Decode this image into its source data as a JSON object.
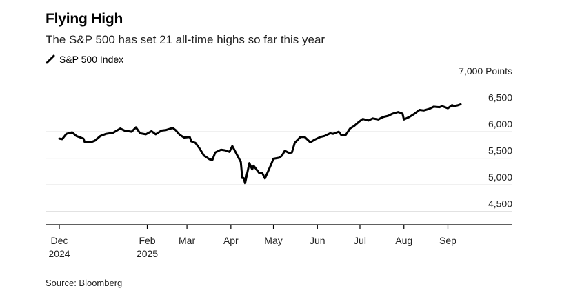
{
  "header": {
    "title": "Flying High",
    "subtitle": "The S&P 500 has set 21 all-time highs so far this year",
    "legend_label": "S&P 500 Index"
  },
  "footer": {
    "source": "Source: Bloomberg"
  },
  "colors": {
    "line": "#000000",
    "grid": "#d9d9d9",
    "axis": "#000000",
    "text": "#222222"
  },
  "chart_data": {
    "type": "line",
    "title": "Flying High",
    "subtitle": "The S&P 500 has set 21 all-time highs so far this year",
    "xlabel": "",
    "ylabel": "",
    "y_unit_label": "Points",
    "ylim": [
      4250,
      7000
    ],
    "y_ticks": [
      4500,
      5000,
      5500,
      6000,
      6500,
      7000
    ],
    "y_tick_labels": [
      "4,500",
      "5,000",
      "5,500",
      "6,000",
      "6,500",
      "7,000 Points"
    ],
    "grid": true,
    "legend_position": "top-left",
    "x_ticks": [
      {
        "date": "2024-12-01",
        "label": "Dec",
        "sublabel": "2024"
      },
      {
        "date": "2025-02-01",
        "label": "Feb",
        "sublabel": "2025"
      },
      {
        "date": "2025-03-01",
        "label": "Mar",
        "sublabel": ""
      },
      {
        "date": "2025-04-01",
        "label": "Apr",
        "sublabel": ""
      },
      {
        "date": "2025-05-01",
        "label": "May",
        "sublabel": ""
      },
      {
        "date": "2025-06-01",
        "label": "Jun",
        "sublabel": ""
      },
      {
        "date": "2025-07-01",
        "label": "Jul",
        "sublabel": ""
      },
      {
        "date": "2025-08-01",
        "label": "Aug",
        "sublabel": ""
      },
      {
        "date": "2025-09-01",
        "label": "Sep",
        "sublabel": ""
      }
    ],
    "series": [
      {
        "name": "S&P 500 Index",
        "points": [
          {
            "x": "2024-12-01",
            "y": 5870
          },
          {
            "x": "2024-12-03",
            "y": 5860
          },
          {
            "x": "2024-12-06",
            "y": 5960
          },
          {
            "x": "2024-12-10",
            "y": 5990
          },
          {
            "x": "2024-12-13",
            "y": 5920
          },
          {
            "x": "2024-12-18",
            "y": 5870
          },
          {
            "x": "2024-12-19",
            "y": 5800
          },
          {
            "x": "2024-12-24",
            "y": 5810
          },
          {
            "x": "2024-12-26",
            "y": 5830
          },
          {
            "x": "2024-12-30",
            "y": 5920
          },
          {
            "x": "2025-01-03",
            "y": 5960
          },
          {
            "x": "2025-01-08",
            "y": 5980
          },
          {
            "x": "2025-01-13",
            "y": 6060
          },
          {
            "x": "2025-01-16",
            "y": 6020
          },
          {
            "x": "2025-01-21",
            "y": 6000
          },
          {
            "x": "2025-01-24",
            "y": 6080
          },
          {
            "x": "2025-01-27",
            "y": 5970
          },
          {
            "x": "2025-01-31",
            "y": 5950
          },
          {
            "x": "2025-02-04",
            "y": 6010
          },
          {
            "x": "2025-02-07",
            "y": 5950
          },
          {
            "x": "2025-02-11",
            "y": 6020
          },
          {
            "x": "2025-02-14",
            "y": 6030
          },
          {
            "x": "2025-02-19",
            "y": 6070
          },
          {
            "x": "2025-02-21",
            "y": 6030
          },
          {
            "x": "2025-02-24",
            "y": 5940
          },
          {
            "x": "2025-02-27",
            "y": 5890
          },
          {
            "x": "2025-03-03",
            "y": 5900
          },
          {
            "x": "2025-03-04",
            "y": 5820
          },
          {
            "x": "2025-03-07",
            "y": 5790
          },
          {
            "x": "2025-03-10",
            "y": 5680
          },
          {
            "x": "2025-03-13",
            "y": 5550
          },
          {
            "x": "2025-03-17",
            "y": 5480
          },
          {
            "x": "2025-03-19",
            "y": 5470
          },
          {
            "x": "2025-03-21",
            "y": 5610
          },
          {
            "x": "2025-03-25",
            "y": 5660
          },
          {
            "x": "2025-03-28",
            "y": 5650
          },
          {
            "x": "2025-03-31",
            "y": 5620
          },
          {
            "x": "2025-04-02",
            "y": 5730
          },
          {
            "x": "2025-04-04",
            "y": 5630
          },
          {
            "x": "2025-04-08",
            "y": 5430
          },
          {
            "x": "2025-04-09",
            "y": 5130
          },
          {
            "x": "2025-04-10",
            "y": 5130
          },
          {
            "x": "2025-04-11",
            "y": 5030
          },
          {
            "x": "2025-04-14",
            "y": 5410
          },
          {
            "x": "2025-04-16",
            "y": 5290
          },
          {
            "x": "2025-04-17",
            "y": 5360
          },
          {
            "x": "2025-04-21",
            "y": 5220
          },
          {
            "x": "2025-04-23",
            "y": 5230
          },
          {
            "x": "2025-04-25",
            "y": 5120
          },
          {
            "x": "2025-04-29",
            "y": 5360
          },
          {
            "x": "2025-05-01",
            "y": 5490
          },
          {
            "x": "2025-05-05",
            "y": 5510
          },
          {
            "x": "2025-05-07",
            "y": 5550
          },
          {
            "x": "2025-05-09",
            "y": 5640
          },
          {
            "x": "2025-05-12",
            "y": 5600
          },
          {
            "x": "2025-05-14",
            "y": 5610
          },
          {
            "x": "2025-05-16",
            "y": 5790
          },
          {
            "x": "2025-05-20",
            "y": 5900
          },
          {
            "x": "2025-05-23",
            "y": 5900
          },
          {
            "x": "2025-05-27",
            "y": 5800
          },
          {
            "x": "2025-05-30",
            "y": 5850
          },
          {
            "x": "2025-06-03",
            "y": 5900
          },
          {
            "x": "2025-06-06",
            "y": 5920
          },
          {
            "x": "2025-06-10",
            "y": 5970
          },
          {
            "x": "2025-06-12",
            "y": 5960
          },
          {
            "x": "2025-06-16",
            "y": 6000
          },
          {
            "x": "2025-06-18",
            "y": 5930
          },
          {
            "x": "2025-06-21",
            "y": 5940
          },
          {
            "x": "2025-06-24",
            "y": 6060
          },
          {
            "x": "2025-06-27",
            "y": 6110
          },
          {
            "x": "2025-06-30",
            "y": 6180
          },
          {
            "x": "2025-07-03",
            "y": 6240
          },
          {
            "x": "2025-07-07",
            "y": 6210
          },
          {
            "x": "2025-07-10",
            "y": 6250
          },
          {
            "x": "2025-07-14",
            "y": 6230
          },
          {
            "x": "2025-07-16",
            "y": 6260
          },
          {
            "x": "2025-07-18",
            "y": 6280
          },
          {
            "x": "2025-07-21",
            "y": 6300
          },
          {
            "x": "2025-07-24",
            "y": 6340
          },
          {
            "x": "2025-07-28",
            "y": 6370
          },
          {
            "x": "2025-07-31",
            "y": 6340
          },
          {
            "x": "2025-08-01",
            "y": 6230
          },
          {
            "x": "2025-08-05",
            "y": 6280
          },
          {
            "x": "2025-08-08",
            "y": 6330
          },
          {
            "x": "2025-08-12",
            "y": 6410
          },
          {
            "x": "2025-08-15",
            "y": 6400
          },
          {
            "x": "2025-08-19",
            "y": 6430
          },
          {
            "x": "2025-08-22",
            "y": 6470
          },
          {
            "x": "2025-08-26",
            "y": 6460
          },
          {
            "x": "2025-08-28",
            "y": 6480
          },
          {
            "x": "2025-09-01",
            "y": 6440
          },
          {
            "x": "2025-09-04",
            "y": 6500
          },
          {
            "x": "2025-09-05",
            "y": 6480
          },
          {
            "x": "2025-09-08",
            "y": 6495
          },
          {
            "x": "2025-09-10",
            "y": 6515
          }
        ]
      }
    ]
  }
}
